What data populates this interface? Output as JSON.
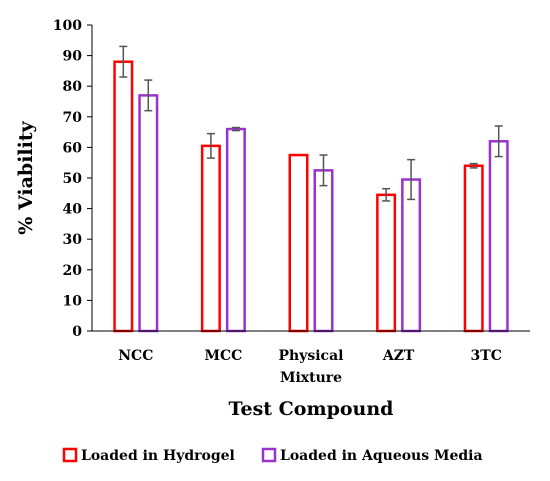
{
  "chart_data": {
    "type": "bar",
    "xlabel": "Test Compound",
    "ylabel": "% Viability",
    "ylim": [
      0,
      100
    ],
    "yticks": [
      0,
      10,
      20,
      30,
      40,
      50,
      60,
      70,
      80,
      90,
      100
    ],
    "categories": [
      [
        "NCC"
      ],
      [
        "MCC"
      ],
      [
        "Physical",
        "Mixture"
      ],
      [
        "AZT"
      ],
      [
        "3TC"
      ]
    ],
    "series": [
      {
        "name": "Loaded in Hydrogel",
        "color": "#ff0000",
        "values": [
          88,
          60.5,
          57.5,
          44.5,
          54
        ],
        "errors": [
          5,
          4,
          0,
          2,
          0.7
        ]
      },
      {
        "name": "Loaded in Aqueous Media",
        "color": "#9933cc",
        "values": [
          77,
          66,
          52.5,
          49.5,
          62
        ],
        "errors": [
          5,
          0.5,
          5,
          6.5,
          5
        ]
      }
    ],
    "grid": false,
    "error_bar_color": "#555555",
    "legend_position": "bottom"
  }
}
